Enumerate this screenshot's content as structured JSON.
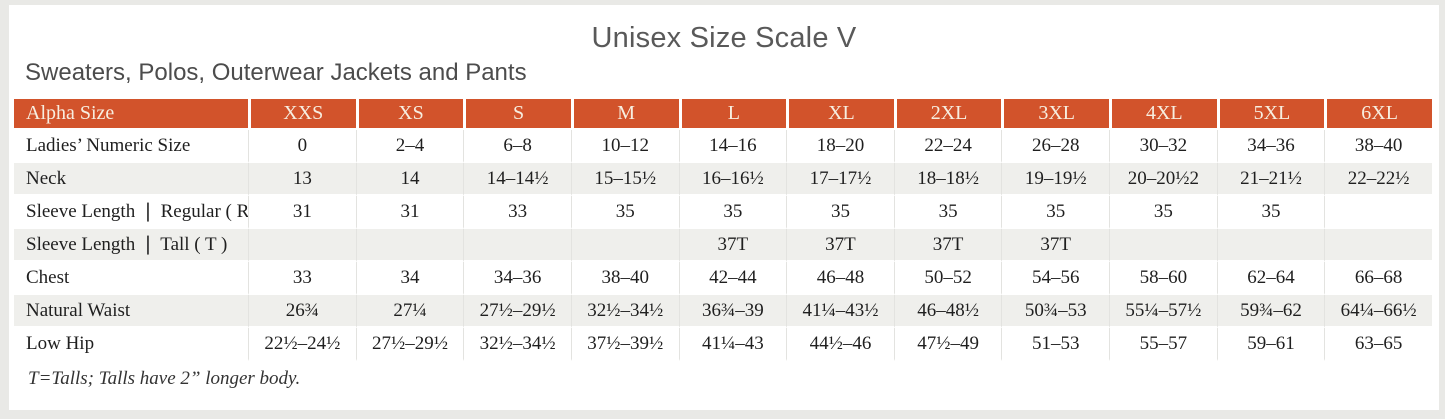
{
  "page": {
    "title": "Unisex Size Scale V",
    "subtitle": "Sweaters, Polos, Outerwear Jackets and Pants",
    "footnote": "T=Talls; Talls have 2” longer body."
  },
  "colors": {
    "header_background": "#d2532b",
    "header_text": "#f7eee0",
    "shaded_row": "#efefec",
    "body_text": "#1f1f1f",
    "heading_text": "#595959",
    "page_border": "#e9e9e6"
  },
  "table": {
    "header": [
      "Alpha Size",
      "XXS",
      "XS",
      "S",
      "M",
      "L",
      "XL",
      "2XL",
      "3XL",
      "4XL",
      "5XL",
      "6XL"
    ],
    "rows": [
      {
        "label": "Ladies’ Numeric Size",
        "shaded": false,
        "values": [
          "0",
          "2–4",
          "6–8",
          "10–12",
          "14–16",
          "18–20",
          "22–24",
          "26–28",
          "30–32",
          "34–36",
          "38–40"
        ]
      },
      {
        "label": "Neck",
        "shaded": true,
        "values": [
          "13",
          "14",
          "14–14½",
          "15–15½",
          "16–16½",
          "17–17½",
          "18–18½",
          "19–19½",
          "20–20½2",
          "21–21½",
          "22–22½"
        ]
      },
      {
        "label": "Sleeve Length ❘ Regular ( R )",
        "shaded": false,
        "values": [
          "31",
          "31",
          "33",
          "35",
          "35",
          "35",
          "35",
          "35",
          "35",
          "35",
          ""
        ]
      },
      {
        "label": "Sleeve Length ❘ Tall ( T )",
        "shaded": true,
        "values": [
          "",
          "",
          "",
          "",
          "37T",
          "37T",
          "37T",
          "37T",
          "",
          "",
          ""
        ]
      },
      {
        "label": "Chest",
        "shaded": false,
        "values": [
          "33",
          "34",
          "34–36",
          "38–40",
          "42–44",
          "46–48",
          "50–52",
          "54–56",
          "58–60",
          "62–64",
          "66–68"
        ]
      },
      {
        "label": "Natural Waist",
        "shaded": true,
        "values": [
          "26¾",
          "27¼",
          "27½–29½",
          "32½–34½",
          "36¾–39",
          "41¼–43½",
          "46–48½",
          "50¾–53",
          "55¼–57½",
          "59¾–62",
          "64¼–66½"
        ]
      },
      {
        "label": "Low Hip",
        "shaded": false,
        "values": [
          "22½–24½",
          "27½–29½",
          "32½–34½",
          "37½–39½",
          "41¼–43",
          "44½–46",
          "47½–49",
          "51–53",
          "55–57",
          "59–61",
          "63–65"
        ]
      }
    ]
  }
}
